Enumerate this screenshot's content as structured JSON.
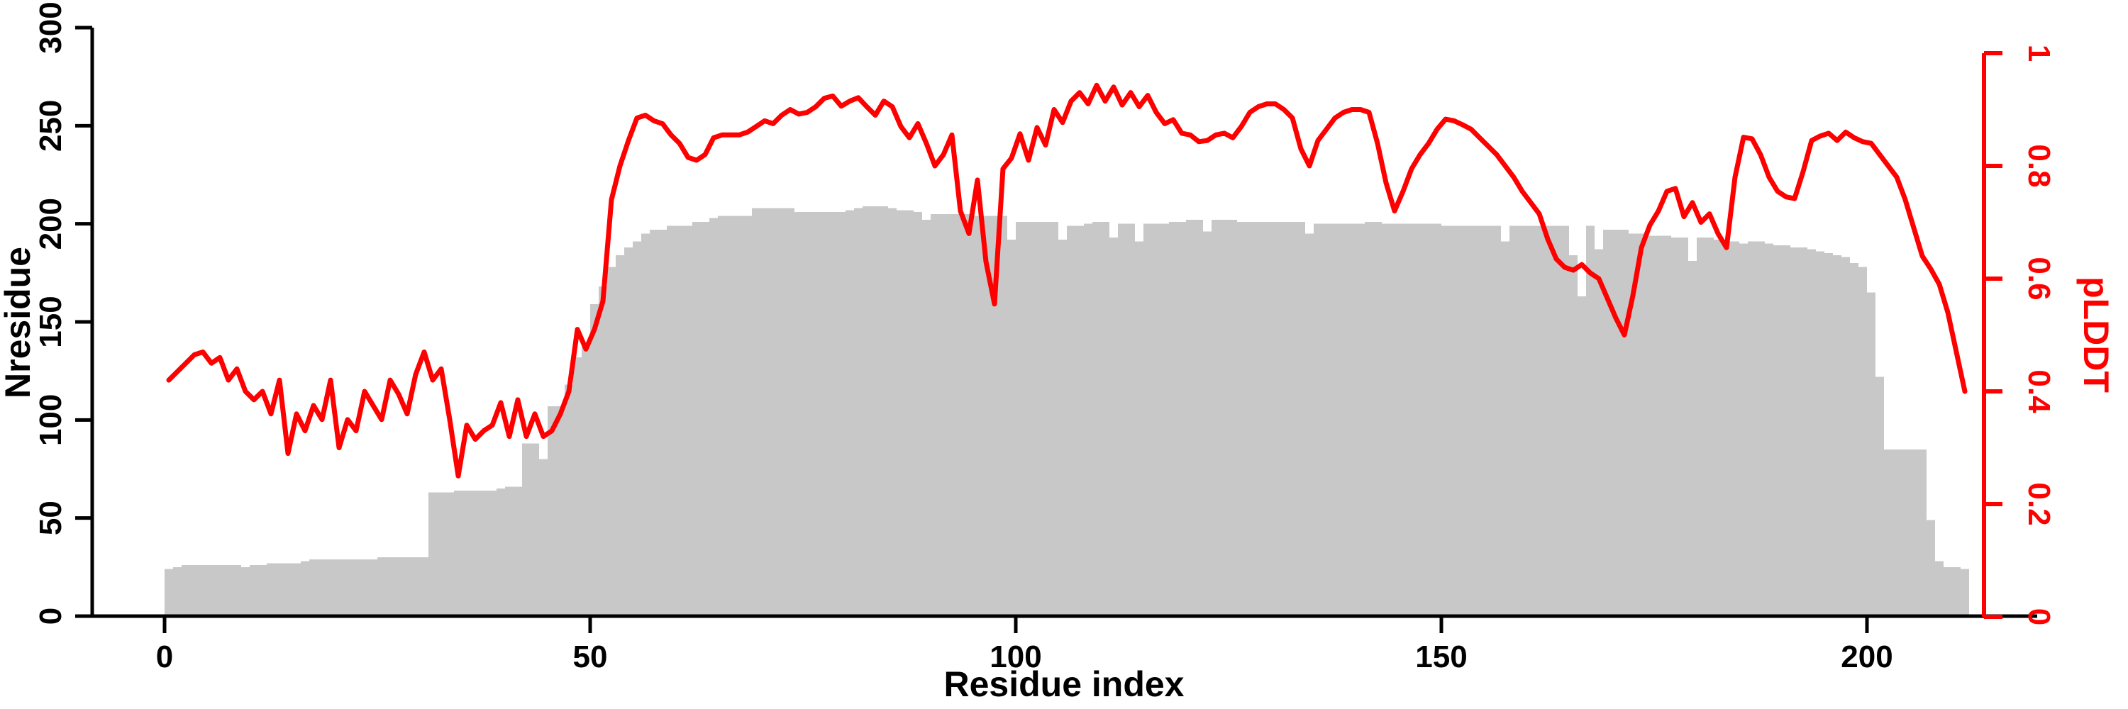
{
  "page": {
    "background": "#ffffff"
  },
  "chart_data": {
    "type": "bar",
    "combo": "bar+line-dual-axis",
    "title": "",
    "xlabel": "Residue index",
    "ylabel_left": "Nresidue",
    "ylabel_right": "pLDDT",
    "x_range": [
      0,
      211
    ],
    "x_step": 1,
    "x_ticks": [
      0,
      50,
      100,
      150,
      200
    ],
    "ylim_left": [
      0,
      300
    ],
    "y_ticks_left": [
      0,
      50,
      100,
      150,
      200,
      250,
      300
    ],
    "ylim_right": [
      0,
      1
    ],
    "y_ticks_right": [
      "0",
      "0.2",
      "0.4",
      "0.6",
      "0.8",
      "1"
    ],
    "grid": false,
    "legend": "none",
    "colors": {
      "bars": "#c8c8c8",
      "line": "#ff0000",
      "axis_left": "#000000",
      "axis_bottom": "#000000",
      "axis_right": "#ff0000"
    },
    "series": [
      {
        "name": "Nresidue",
        "type": "bar",
        "axis": "left",
        "color": "#c8c8c8",
        "values": [
          24,
          25,
          26,
          26,
          26,
          26,
          26,
          26,
          26,
          25,
          26,
          26,
          27,
          27,
          27,
          27,
          28,
          29,
          29,
          29,
          29,
          29,
          29,
          29,
          29,
          30,
          30,
          30,
          30,
          30,
          30,
          63,
          63,
          63,
          64,
          64,
          64,
          64,
          64,
          65,
          66,
          66,
          88,
          88,
          80,
          107,
          107,
          118,
          132,
          138,
          159,
          168,
          178,
          184,
          188,
          191,
          195,
          197,
          197,
          199,
          199,
          199,
          201,
          201,
          203,
          204,
          204,
          204,
          204,
          208,
          208,
          208,
          208,
          208,
          206,
          206,
          206,
          206,
          206,
          206,
          207,
          208,
          209,
          209,
          209,
          208,
          207,
          207,
          206,
          202,
          205,
          205,
          205,
          205,
          205,
          204,
          204,
          204,
          204,
          192,
          201,
          201,
          201,
          201,
          201,
          192,
          199,
          199,
          200,
          201,
          201,
          193,
          200,
          200,
          191,
          200,
          200,
          200,
          201,
          201,
          202,
          202,
          196,
          202,
          202,
          202,
          201,
          201,
          201,
          201,
          201,
          201,
          201,
          201,
          195,
          200,
          200,
          200,
          200,
          200,
          200,
          201,
          201,
          200,
          200,
          200,
          200,
          200,
          200,
          200,
          199,
          199,
          199,
          199,
          199,
          199,
          199,
          191,
          199,
          199,
          199,
          199,
          199,
          199,
          199,
          184,
          163,
          199,
          187,
          197,
          197,
          197,
          195,
          195,
          194,
          194,
          194,
          193,
          193,
          181,
          193,
          193,
          192,
          191,
          191,
          190,
          191,
          191,
          190,
          189,
          189,
          188,
          188,
          187,
          186,
          185,
          184,
          183,
          180,
          178,
          165,
          122,
          85,
          85,
          85,
          85,
          85,
          49,
          28,
          25,
          25,
          24
        ]
      },
      {
        "name": "pLDDT",
        "type": "line",
        "axis": "right",
        "color": "#ff0000",
        "values": [
          0.42,
          0.435,
          0.45,
          0.465,
          0.47,
          0.45,
          0.46,
          0.42,
          0.44,
          0.4,
          0.385,
          0.4,
          0.36,
          0.42,
          0.29,
          0.36,
          0.33,
          0.375,
          0.35,
          0.42,
          0.3,
          0.35,
          0.33,
          0.4,
          0.375,
          0.35,
          0.42,
          0.395,
          0.36,
          0.43,
          0.47,
          0.42,
          0.44,
          0.35,
          0.25,
          0.34,
          0.315,
          0.33,
          0.34,
          0.38,
          0.32,
          0.385,
          0.32,
          0.36,
          0.32,
          0.33,
          0.36,
          0.4,
          0.51,
          0.475,
          0.51,
          0.56,
          0.74,
          0.8,
          0.845,
          0.885,
          0.89,
          0.88,
          0.875,
          0.855,
          0.84,
          0.815,
          0.81,
          0.82,
          0.85,
          0.855,
          0.855,
          0.855,
          0.86,
          0.87,
          0.88,
          0.875,
          0.89,
          0.9,
          0.892,
          0.895,
          0.905,
          0.92,
          0.924,
          0.906,
          0.915,
          0.921,
          0.905,
          0.89,
          0.915,
          0.905,
          0.87,
          0.85,
          0.875,
          0.84,
          0.8,
          0.82,
          0.855,
          0.72,
          0.68,
          0.775,
          0.63,
          0.555,
          0.795,
          0.814,
          0.857,
          0.81,
          0.868,
          0.837,
          0.9,
          0.877,
          0.915,
          0.93,
          0.91,
          0.943,
          0.915,
          0.94,
          0.908,
          0.93,
          0.905,
          0.925,
          0.895,
          0.875,
          0.882,
          0.858,
          0.855,
          0.843,
          0.845,
          0.855,
          0.858,
          0.85,
          0.87,
          0.895,
          0.905,
          0.91,
          0.91,
          0.9,
          0.885,
          0.83,
          0.8,
          0.845,
          0.865,
          0.885,
          0.895,
          0.9,
          0.9,
          0.895,
          0.84,
          0.77,
          0.72,
          0.755,
          0.795,
          0.82,
          0.84,
          0.865,
          0.883,
          0.88,
          0.873,
          0.865,
          0.85,
          0.835,
          0.82,
          0.8,
          0.78,
          0.755,
          0.735,
          0.715,
          0.67,
          0.635,
          0.62,
          0.615,
          0.625,
          0.61,
          0.6,
          0.565,
          0.53,
          0.5,
          0.57,
          0.655,
          0.695,
          0.72,
          0.755,
          0.76,
          0.71,
          0.735,
          0.7,
          0.715,
          0.68,
          0.655,
          0.78,
          0.851,
          0.848,
          0.82,
          0.78,
          0.755,
          0.745,
          0.742,
          0.79,
          0.845,
          0.853,
          0.858,
          0.845,
          0.86,
          0.85,
          0.843,
          0.84,
          0.82,
          0.8,
          0.78,
          0.74,
          0.69,
          0.64,
          0.617,
          0.59,
          0.54,
          0.47,
          0.4
        ]
      }
    ]
  }
}
